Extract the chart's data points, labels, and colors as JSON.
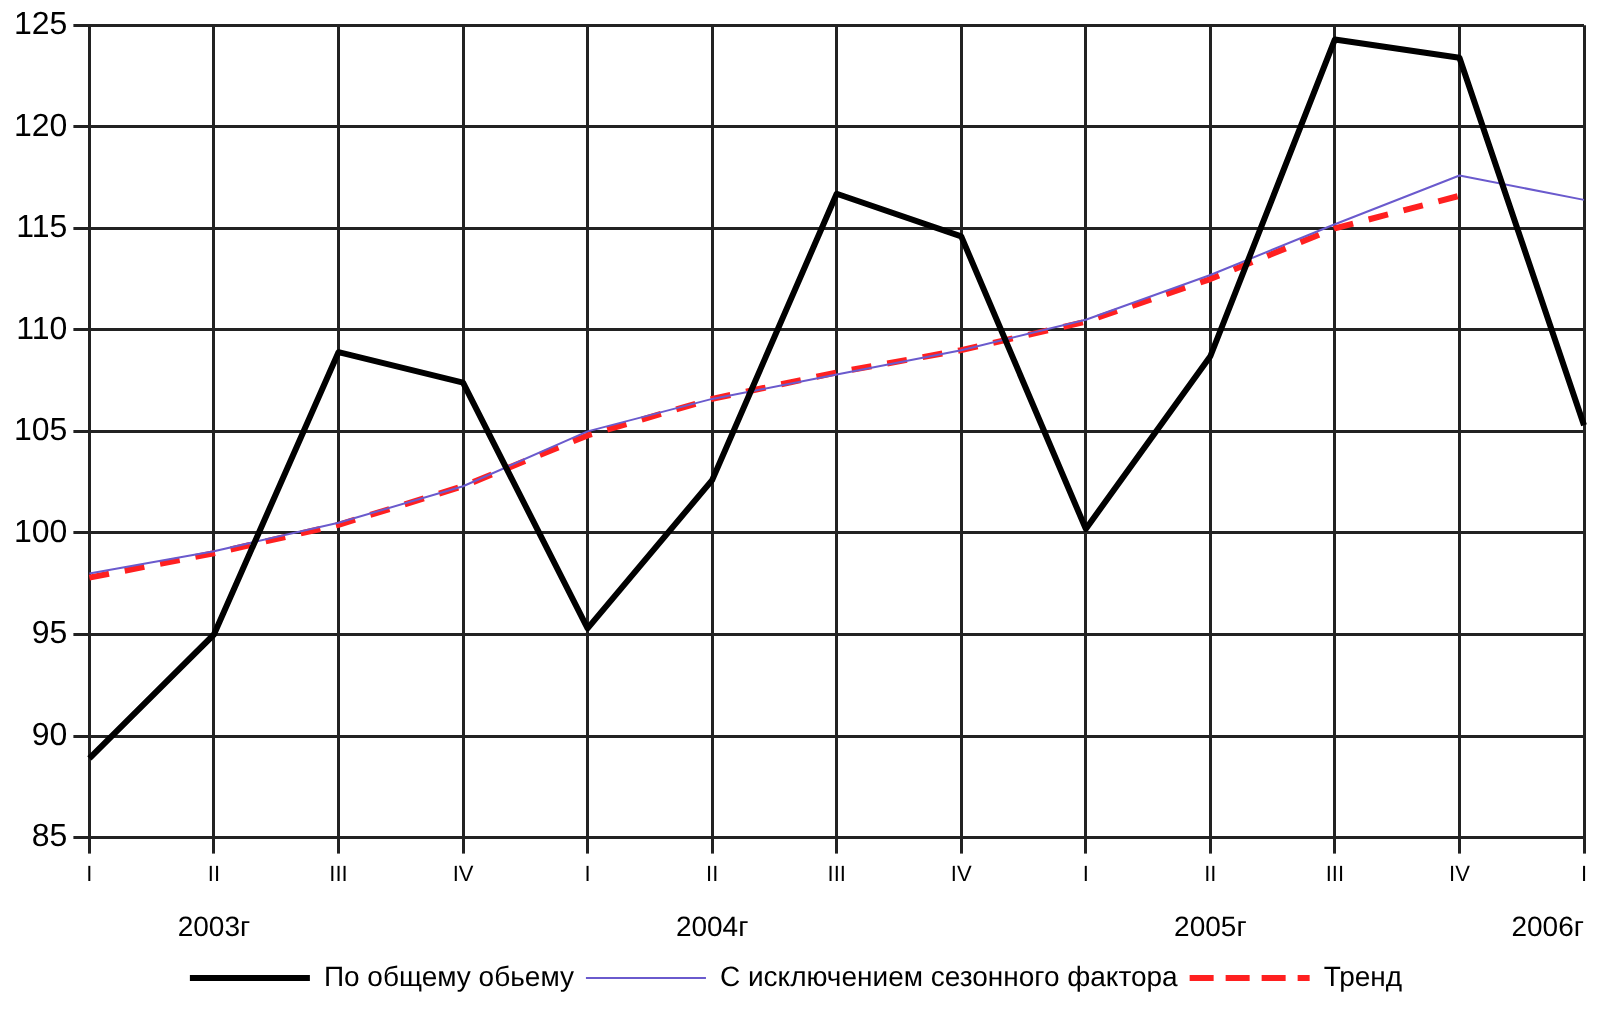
{
  "chart_data": {
    "type": "line",
    "categories": [
      "I",
      "II",
      "III",
      "IV",
      "I",
      "II",
      "III",
      "IV",
      "I",
      "II",
      "III",
      "IV",
      "I"
    ],
    "series": [
      {
        "name": "По общему обьему",
        "color": "#000000",
        "values": [
          88.9,
          95,
          108.9,
          107.4,
          95.3,
          102.6,
          116.7,
          114.6,
          100.2,
          108.7,
          124.3,
          123.4,
          105.3
        ]
      },
      {
        "name": "С исключением сезонного фактора",
        "color": "#6a5acd",
        "values": [
          98,
          99.1,
          100.5,
          102.3,
          105,
          106.6,
          107.8,
          109,
          110.5,
          112.7,
          115.2,
          117.6,
          116.4
        ]
      },
      {
        "name": "Тренд",
        "color": "#ff2020",
        "line_style": "dashed",
        "values": [
          97.8,
          99,
          100.4,
          102.3,
          104.8,
          106.6,
          107.9,
          109,
          110.4,
          112.5,
          115,
          116.6,
          null
        ]
      }
    ],
    "ylim": [
      85,
      125
    ],
    "yticks": [
      85,
      90,
      95,
      100,
      105,
      110,
      115,
      120,
      125
    ],
    "grid": true,
    "legend": "bottom",
    "marker": "none",
    "annotations": [
      "2003г",
      "2004г",
      "2005г",
      "2006г"
    ]
  }
}
